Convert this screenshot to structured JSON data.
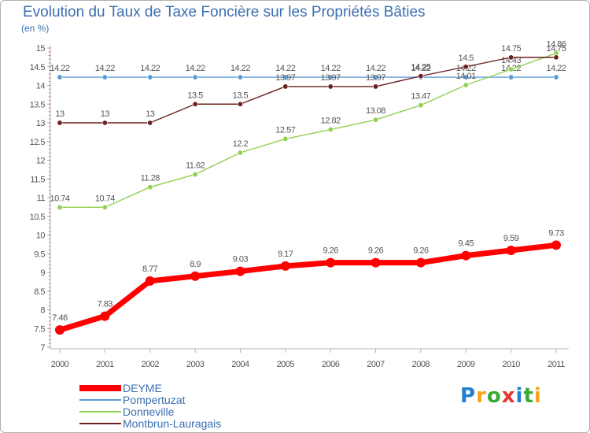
{
  "chart_data": {
    "type": "line",
    "title": "Evolution du Taux de Taxe Foncière sur les Propriétés Bâties",
    "ylabel": "(en %)",
    "xlabel": "",
    "categories": [
      "2000",
      "2001",
      "2002",
      "2003",
      "2004",
      "2005",
      "2006",
      "2007",
      "2008",
      "2009",
      "2010",
      "2011"
    ],
    "ylim": [
      7,
      15
    ],
    "yticks": [
      "7",
      "7.5",
      "8",
      "8.5",
      "9",
      "9.5",
      "10",
      "10.5",
      "11",
      "11.5",
      "12",
      "12.5",
      "13",
      "13.5",
      "14",
      "14.5",
      "15"
    ],
    "grid": false,
    "legend_position": "bottom-left",
    "series": [
      {
        "name": "DEYME",
        "color": "#ff0000",
        "values": [
          7.46,
          7.83,
          8.77,
          8.9,
          9.03,
          9.17,
          9.26,
          9.26,
          9.26,
          9.45,
          9.59,
          9.73
        ],
        "labels": [
          "7.46",
          "7.83",
          "8.77",
          "8.9",
          "9.03",
          "9.17",
          "9.26",
          "9.26",
          "9.26",
          "9.45",
          "9.59",
          "9.73"
        ]
      },
      {
        "name": "Pompertuzat",
        "color": "#5b9bd5",
        "values": [
          14.22,
          14.22,
          14.22,
          14.22,
          14.22,
          14.22,
          14.22,
          14.22,
          14.22,
          14.22,
          14.22,
          14.22
        ],
        "labels": [
          "14.22",
          "14.22",
          "14.22",
          "14.22",
          "14.22",
          "14.22",
          "14.22",
          "14.22",
          "14.22",
          "14.22",
          "14.22",
          "14.22"
        ]
      },
      {
        "name": "Donneville",
        "color": "#92d050",
        "values": [
          10.74,
          10.74,
          11.28,
          11.62,
          12.2,
          12.57,
          12.82,
          13.08,
          13.47,
          14.01,
          14.43,
          14.86
        ],
        "labels": [
          "10.74",
          "10.74",
          "11.28",
          "11.62",
          "12.2",
          "12.57",
          "12.82",
          "13.08",
          "13.47",
          "14.01",
          "14.43",
          "14.86"
        ]
      },
      {
        "name": "Montbrun-Lauragais",
        "color": "#6b1f1f",
        "values": [
          13,
          13,
          13,
          13.5,
          13.5,
          13.97,
          13.97,
          13.97,
          14.25,
          14.5,
          14.75,
          14.75
        ],
        "labels": [
          "13",
          "13",
          "13",
          "13.5",
          "13.5",
          "13.97",
          "13.97",
          "13.97",
          "14.25",
          "14.5",
          "14.75",
          "14.75"
        ]
      }
    ]
  },
  "brand": {
    "logo_text": "Proxiti",
    "letters": [
      "P",
      "r",
      "o",
      "x",
      "i",
      "t",
      "i"
    ],
    "letter_colors": [
      "#1f7fd0",
      "#f7a21b",
      "#3aaa35",
      "#e5332a",
      "#1f7fd0",
      "#3aaa35",
      "#f7a21b"
    ]
  }
}
